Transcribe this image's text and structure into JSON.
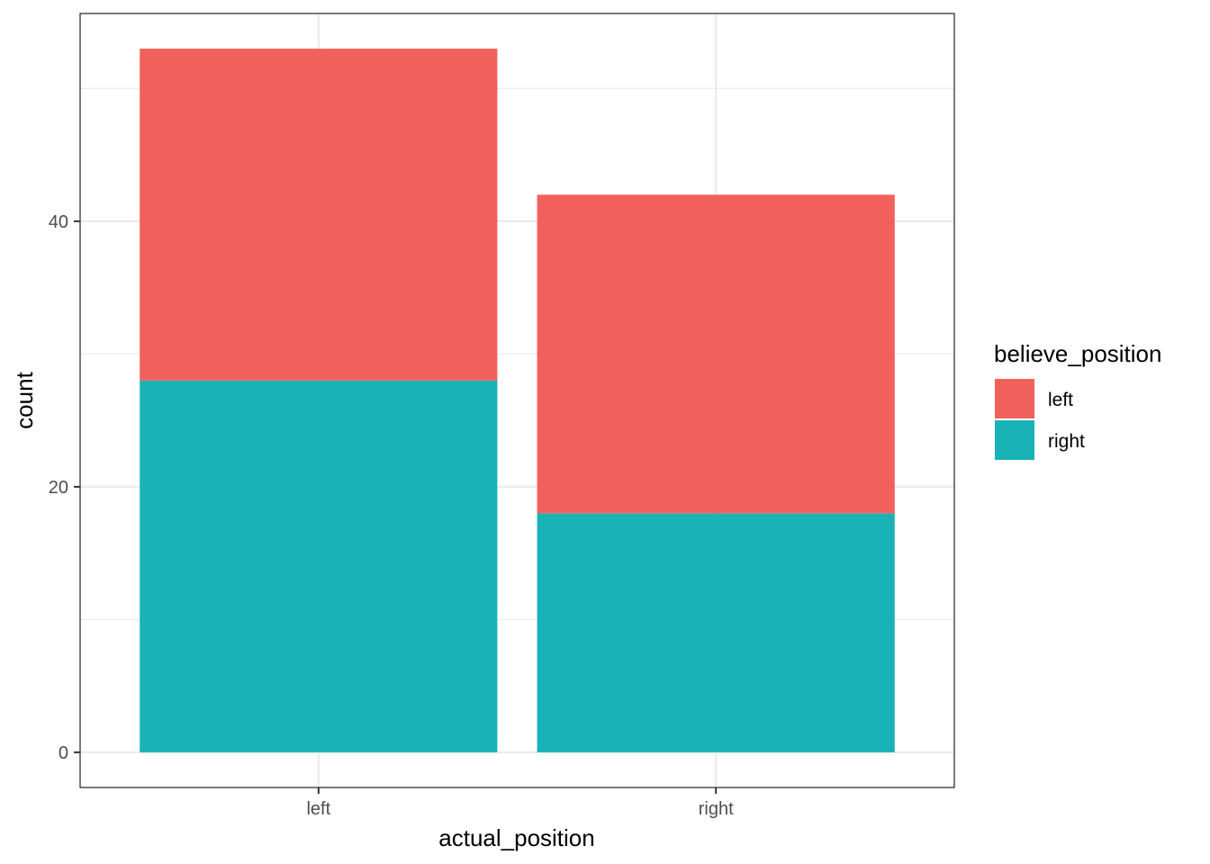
{
  "chart_data": {
    "type": "bar",
    "stacked": true,
    "categories": [
      "left",
      "right"
    ],
    "series": [
      {
        "name": "right",
        "values": [
          28,
          18
        ],
        "color": "#19B3B7"
      },
      {
        "name": "left",
        "values": [
          25,
          24
        ],
        "color": "#F2605C"
      }
    ],
    "xlabel": "actual_position",
    "ylabel": "count",
    "yticks": [
      0,
      20,
      40
    ],
    "ylim": [
      -2.65,
      55.65
    ],
    "grid": true,
    "legend": {
      "title": "believe_position",
      "position": "right",
      "entries": [
        {
          "label": "left",
          "color": "#F2605C"
        },
        {
          "label": "right",
          "color": "#19B3B7"
        }
      ]
    }
  }
}
